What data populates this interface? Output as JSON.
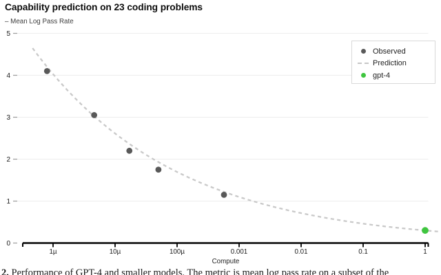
{
  "header": {
    "title": "Capability prediction on 23 coding problems",
    "y_axis_title": "– Mean Log Pass Rate",
    "x_axis_label": "Compute"
  },
  "legend": {
    "items": [
      {
        "label": "Observed",
        "marker": "dot",
        "color": "#595959"
      },
      {
        "label": "Prediction",
        "marker": "dashed-line",
        "color": "#c6c6c6"
      },
      {
        "label": "gpt-4",
        "marker": "dot",
        "color": "#3fc53f"
      }
    ]
  },
  "chart_data": {
    "type": "scatter",
    "title": "Capability prediction on 23 coding problems",
    "xlabel": "Compute",
    "ylabel": "– Mean Log Pass Rate",
    "x_scale": "log10",
    "xlim": [
      3.2e-07,
      1.7
    ],
    "ylim": [
      0,
      5
    ],
    "grid": "horizontal",
    "legend_position": "top-right",
    "x_ticks": [
      {
        "label": "1µ",
        "value": 1e-06
      },
      {
        "label": "10µ",
        "value": 1e-05
      },
      {
        "label": "100µ",
        "value": 0.0001
      },
      {
        "label": "0.001",
        "value": 0.001
      },
      {
        "label": "0.01",
        "value": 0.01
      },
      {
        "label": "0.1",
        "value": 0.1
      },
      {
        "label": "1",
        "value": 1
      }
    ],
    "y_ticks": [
      0,
      1,
      2,
      3,
      4,
      5
    ],
    "series": [
      {
        "name": "Observed",
        "type": "scatter",
        "color": "#595959",
        "points": [
          [
            8e-07,
            4.1
          ],
          [
            4.6e-06,
            3.05
          ],
          [
            1.7e-05,
            2.2
          ],
          [
            5e-05,
            1.75
          ],
          [
            0.00057,
            1.15
          ]
        ]
      },
      {
        "name": "Prediction",
        "type": "line",
        "style": "dashed",
        "color": "#c9c9c9",
        "fit": "power_law",
        "k": 0.3,
        "alpha": 0.188
      },
      {
        "name": "gpt-4",
        "type": "scatter",
        "color": "#3fc53f",
        "points": [
          [
            1,
            0.3
          ]
        ]
      }
    ]
  },
  "caption": {
    "prefix": "2.",
    "text": " Performance of GPT-4 and smaller models. The metric is mean log pass rate on a subset of the"
  }
}
